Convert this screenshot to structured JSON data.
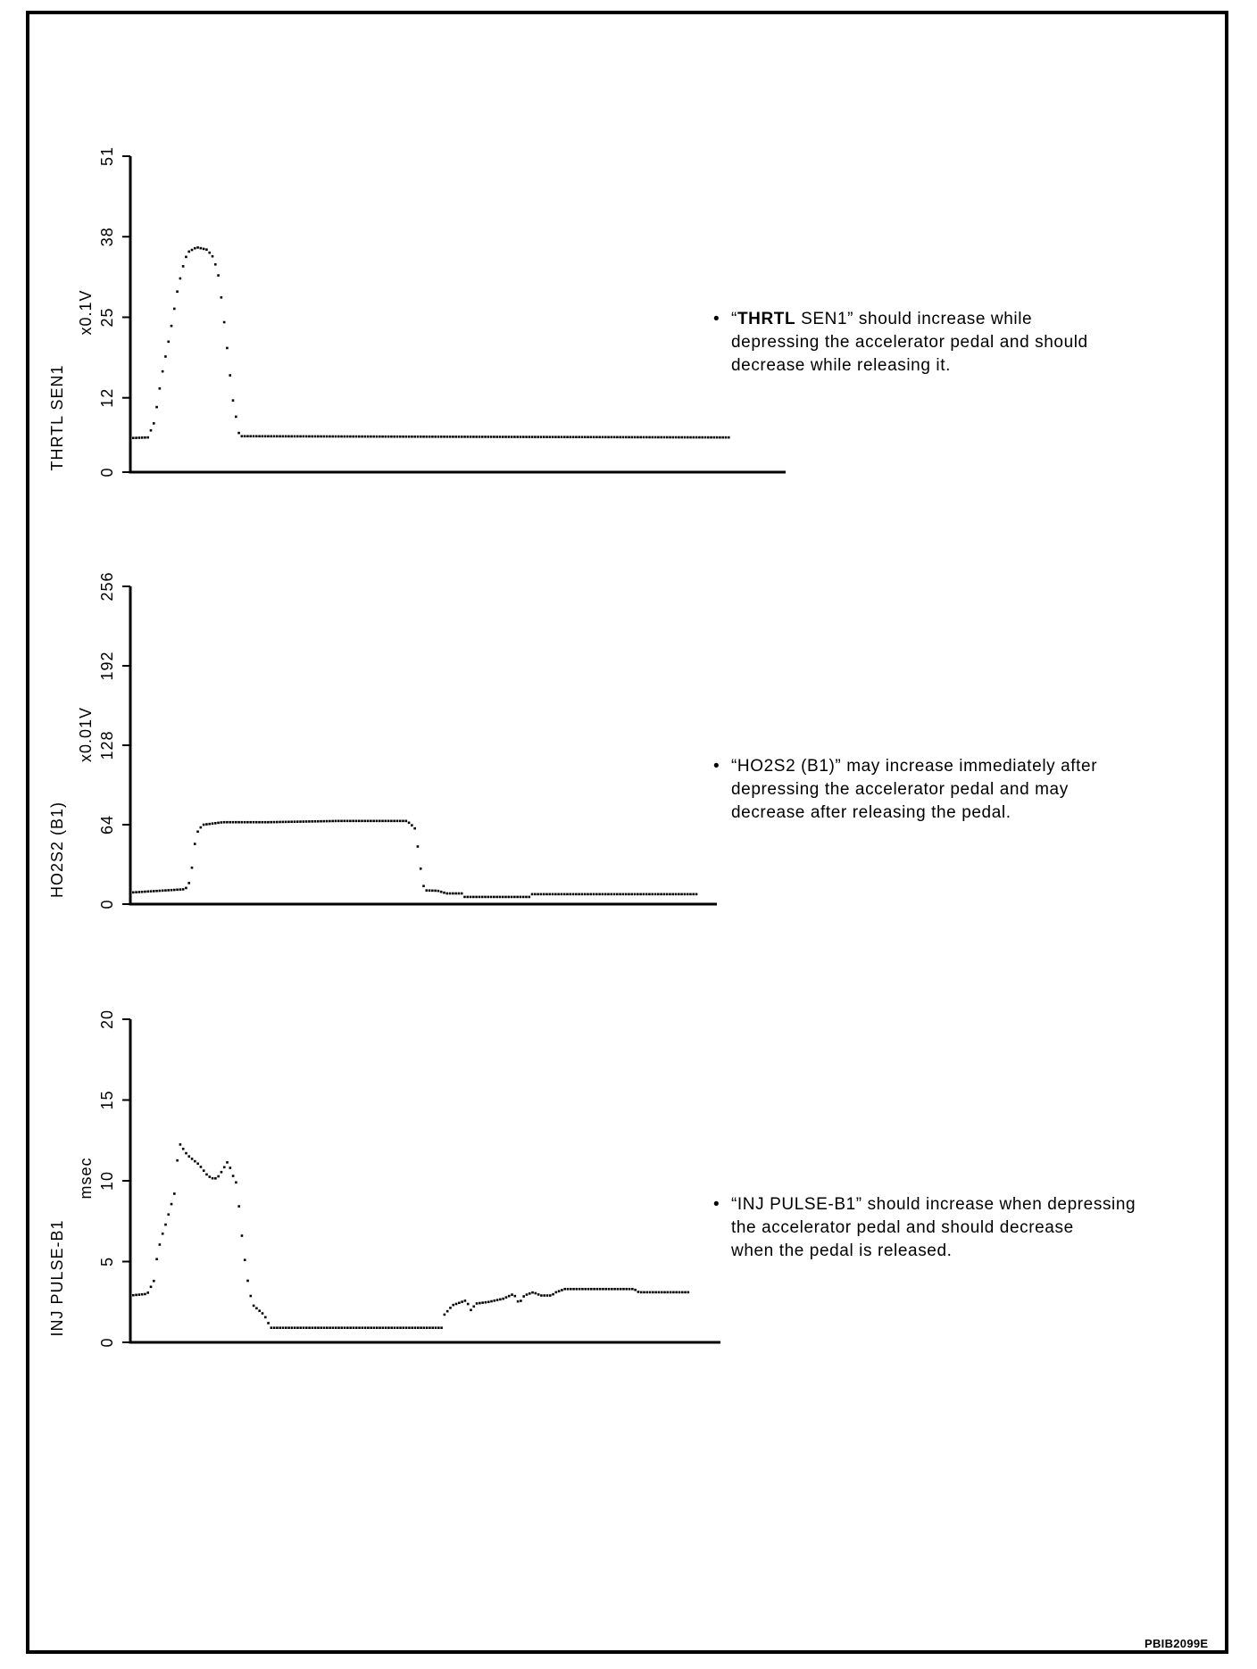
{
  "chart_data": [
    {
      "type": "scatter",
      "title": "THRTL SEN1",
      "ylabel": "THRTL SEN1",
      "unit": "x0.1V",
      "xlabel": "",
      "xlim": [
        0,
        111.7
      ],
      "ylim": [
        0,
        51
      ],
      "yticks": [
        "0",
        "12",
        "25",
        "38",
        "51"
      ],
      "ytick_values": [
        0,
        12,
        25,
        38,
        51
      ],
      "grid": false,
      "points": [
        [
          0,
          5.5
        ],
        [
          3,
          5.6
        ],
        [
          4.1,
          8.1
        ],
        [
          5.3,
          15.3
        ],
        [
          6.8,
          22.5
        ],
        [
          8.1,
          29.7
        ],
        [
          9.3,
          34.4
        ],
        [
          10,
          35.6
        ],
        [
          11.3,
          36.3
        ],
        [
          13.1,
          35.9
        ],
        [
          14.2,
          34.6
        ],
        [
          15.1,
          31.4
        ],
        [
          16.3,
          21.8
        ],
        [
          17.4,
          12.1
        ],
        [
          18.6,
          5.8
        ],
        [
          102,
          5.6
        ]
      ]
    },
    {
      "type": "scatter",
      "title": "HO2S2 (B1)",
      "ylabel": "HO2S2 (B1)",
      "unit": "x0.01V",
      "xlabel": "",
      "xlim": [
        0,
        100
      ],
      "ylim": [
        0,
        256
      ],
      "yticks": [
        "0",
        "64",
        "128",
        "192",
        "256"
      ],
      "ytick_values": [
        0,
        64,
        128,
        192,
        256
      ],
      "grid": false,
      "points": [
        [
          0,
          9.3
        ],
        [
          9.3,
          12
        ],
        [
          9.9,
          15
        ],
        [
          10.4,
          25
        ],
        [
          10.7,
          38
        ],
        [
          11.1,
          52
        ],
        [
          11.6,
          60
        ],
        [
          12.5,
          64
        ],
        [
          15.8,
          66
        ],
        [
          23.4,
          66
        ],
        [
          35.6,
          67
        ],
        [
          47,
          67
        ],
        [
          47.7,
          65
        ],
        [
          48.7,
          60
        ],
        [
          48.9,
          50
        ],
        [
          49.6,
          25
        ],
        [
          49.8,
          16
        ],
        [
          50.5,
          11
        ],
        [
          52.4,
          10.8
        ],
        [
          53.9,
          8.6
        ],
        [
          56.6,
          8.6
        ],
        [
          56.9,
          5.8
        ],
        [
          68.2,
          5.8
        ],
        [
          68.5,
          8
        ],
        [
          96.5,
          8
        ]
      ]
    },
    {
      "type": "scatter",
      "title": "INJ PULSE-B1",
      "ylabel": "INJ PULSE-B1",
      "unit": "msec",
      "xlabel": "",
      "xlim": [
        0,
        100.5
      ],
      "ylim": [
        0,
        20
      ],
      "yticks": [
        "0",
        "5",
        "10",
        "15",
        "20"
      ],
      "ytick_values": [
        0,
        5,
        10,
        15,
        20
      ],
      "grid": false,
      "points": [
        [
          0,
          2.9
        ],
        [
          2.9,
          3.0
        ],
        [
          4,
          3.8
        ],
        [
          4.3,
          4.7
        ],
        [
          4.7,
          5.6
        ],
        [
          5.3,
          6.5
        ],
        [
          6.1,
          7.4
        ],
        [
          6.8,
          8.3
        ],
        [
          7.5,
          9.2
        ],
        [
          7.8,
          10.1
        ],
        [
          7.9,
          11.0
        ],
        [
          8.4,
          12.3
        ],
        [
          9.7,
          11.6
        ],
        [
          11.7,
          11.0
        ],
        [
          13.2,
          10.3
        ],
        [
          14.3,
          10.1
        ],
        [
          15.1,
          10.3
        ],
        [
          16.6,
          11.2
        ],
        [
          17.7,
          10.1
        ],
        [
          18.3,
          9.7
        ],
        [
          18.4,
          8.8
        ],
        [
          18.9,
          6.9
        ],
        [
          19.5,
          5.1
        ],
        [
          20.2,
          3.3
        ],
        [
          20.9,
          2.3
        ],
        [
          22.8,
          1.7
        ],
        [
          23.9,
          0.9
        ],
        [
          53,
          0.9
        ],
        [
          53.1,
          1.55
        ],
        [
          54.9,
          2.3
        ],
        [
          57.2,
          2.6
        ],
        [
          58,
          2.0
        ],
        [
          58.9,
          2.4
        ],
        [
          61,
          2.5
        ],
        [
          63.5,
          2.7
        ],
        [
          65.3,
          3.0
        ],
        [
          66.2,
          2.4
        ],
        [
          67.1,
          2.9
        ],
        [
          68.6,
          3.1
        ],
        [
          69.9,
          2.9
        ],
        [
          71.7,
          2.9
        ],
        [
          72.5,
          3.1
        ],
        [
          74,
          3.3
        ],
        [
          85.8,
          3.3
        ],
        [
          86.6,
          3.1
        ],
        [
          95.3,
          3.1
        ]
      ]
    }
  ],
  "notes": [
    {
      "bold": "THRTL",
      "lines": [
        "“",
        " SEN1” should increase while",
        "depressing the accelerator pedal and should",
        "decrease while releasing it."
      ]
    },
    {
      "lines": [
        "“HO2S2 (B1)” may increase immediately after",
        "depressing the accelerator pedal and may",
        "decrease after releasing the pedal."
      ]
    },
    {
      "lines": [
        "“INJ PULSE-B1” should increase when depressing",
        "the accelerator pedal and should decrease",
        "when the pedal is released."
      ]
    }
  ],
  "bullet": "•",
  "figure_code": "PBIB2099E"
}
